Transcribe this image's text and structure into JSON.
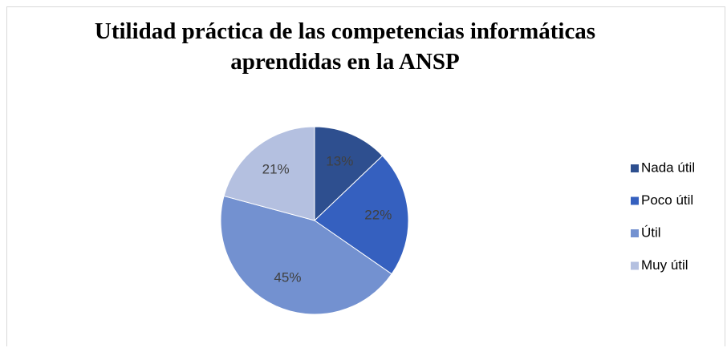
{
  "chart_data": {
    "type": "pie",
    "title": "Utilidad práctica de las competencias informáticas aprendidas en la ANSP",
    "categories": [
      "Nada útil",
      "Poco útil",
      "Útil",
      "Muy útil"
    ],
    "values": [
      13,
      22,
      45,
      21
    ],
    "value_labels": [
      "13%",
      "22%",
      "45%",
      "21%"
    ],
    "colors": [
      "#2e4f8f",
      "#3560bf",
      "#7391d0",
      "#b4c0e0"
    ],
    "legend": "right"
  }
}
